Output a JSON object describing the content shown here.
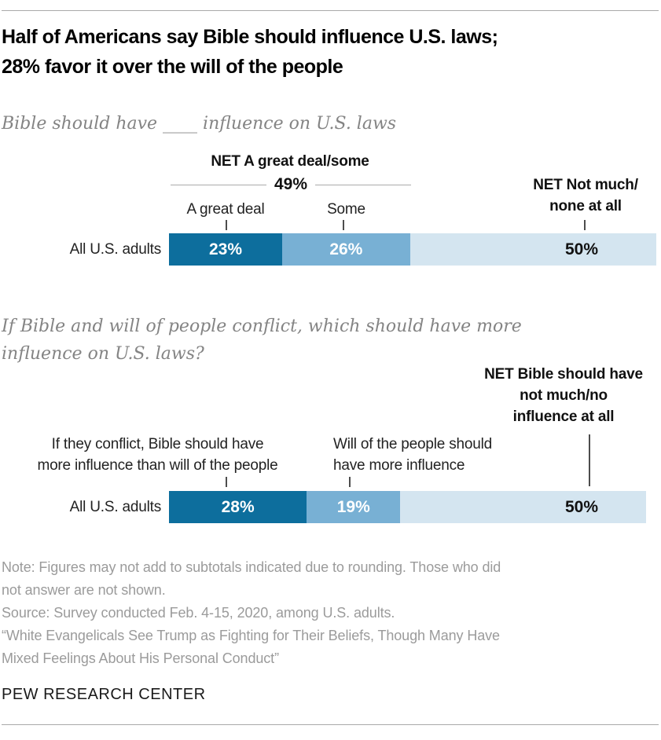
{
  "header": {
    "title_lines": [
      "Half of Americans say Bible should influence U.S. laws;",
      "28% favor it over the will of the people"
    ]
  },
  "chart1": {
    "subtitle": "Bible should have ____ influence on U.S. laws",
    "net_left": {
      "label": "NET A great deal/some",
      "value": "49%"
    },
    "net_right_lines": [
      "NET Not much/",
      "none at all"
    ],
    "category_labels": [
      "A great deal",
      "Some"
    ],
    "row_label": "All U.S. adults",
    "value_labels": [
      "23%",
      "26%",
      "50%"
    ]
  },
  "chart2": {
    "subtitle_lines": [
      "If Bible and will of people conflict, which should have more",
      "influence on U.S. laws?"
    ],
    "net_right_lines": [
      "NET Bible should have",
      "not much/no",
      "influence at all"
    ],
    "label_bible_lines": [
      "If they conflict, Bible should have",
      "more influence than will of the people"
    ],
    "label_will_lines": [
      "Will of the people should",
      "have more influence"
    ],
    "row_label": "All U.S. adults",
    "value_labels": [
      "28%",
      "19%",
      "50%"
    ]
  },
  "footer": {
    "note_lines": [
      "Note: Figures may not add to subtotals indicated due to rounding. Those who did",
      "not answer are not shown.",
      "Source: Survey conducted Feb. 4-15, 2020, among U.S. adults.",
      "“White Evangelicals See Trump as Fighting for Their Beliefs, Though Many Have",
      "Mixed Feelings About His Personal Conduct”"
    ],
    "brand": "PEW RESEARCH CENTER"
  },
  "colors": {
    "dark_blue": "#0d6e9d",
    "medium_blue": "#78b0d4",
    "light_blue": "#d4e5f0",
    "tick_gray": "#4d4d4d",
    "rule_gray": "#a9a9a9"
  },
  "chart_data": [
    {
      "type": "bar",
      "orientation": "horizontal-stacked",
      "title": "Bible should have ___ influence on U.S. laws",
      "categories": [
        "All U.S. adults"
      ],
      "series": [
        {
          "name": "A great deal",
          "values": [
            23
          ]
        },
        {
          "name": "Some",
          "values": [
            26
          ]
        },
        {
          "name": "NET Not much/none at all",
          "values": [
            50
          ]
        }
      ],
      "net_annotation": {
        "label": "NET A great deal/some",
        "value": 49
      },
      "xlim": [
        0,
        100
      ],
      "legend_position": "above-bar",
      "grid": false
    },
    {
      "type": "bar",
      "orientation": "horizontal-stacked",
      "title": "If Bible and will of people conflict, which should have more influence on U.S. laws?",
      "categories": [
        "All U.S. adults"
      ],
      "series": [
        {
          "name": "If they conflict, Bible should have more influence than will of the people",
          "values": [
            28
          ]
        },
        {
          "name": "Will of the people should have more influence",
          "values": [
            19
          ]
        },
        {
          "name": "NET Bible should have not much/no influence at all",
          "values": [
            50
          ]
        }
      ],
      "xlim": [
        0,
        100
      ],
      "legend_position": "above-bar",
      "grid": false
    }
  ]
}
